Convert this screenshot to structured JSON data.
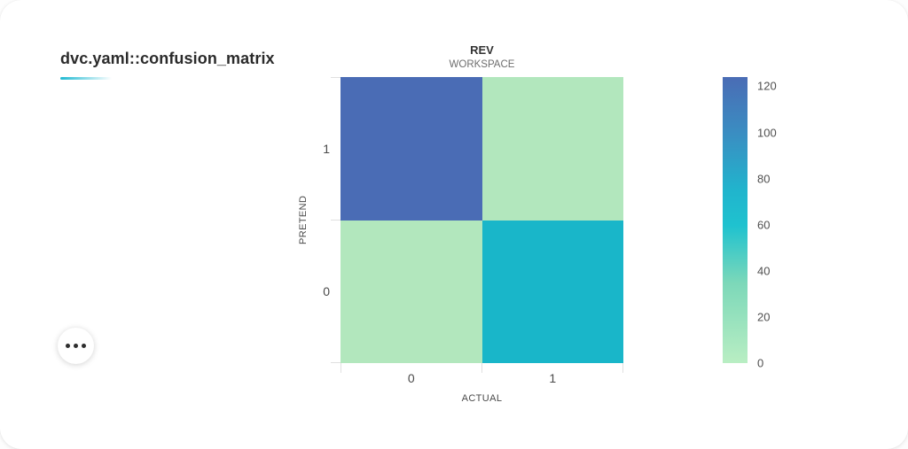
{
  "card": {
    "title": "dvc.yaml::confusion_matrix",
    "accent_color": "#1fb9d2"
  },
  "menu_button": {
    "icon": "ellipsis-icon"
  },
  "chart_data": {
    "type": "heatmap",
    "title": "REV",
    "subtitle": "WORKSPACE",
    "xlabel": "ACTUAL",
    "ylabel": "PRETEND",
    "x_categories": [
      "0",
      "1"
    ],
    "y_categories": [
      "1",
      "0"
    ],
    "rows": [
      {
        "pretend": "1",
        "cells": [
          {
            "actual": "0",
            "value": 124,
            "color": "#4a6cb5"
          },
          {
            "actual": "1",
            "value": 5,
            "color": "#b2e7bd"
          }
        ]
      },
      {
        "pretend": "0",
        "cells": [
          {
            "actual": "0",
            "value": 5,
            "color": "#b2e7bd"
          },
          {
            "actual": "1",
            "value": 64,
            "color": "#19b6c9"
          }
        ]
      }
    ],
    "legend": {
      "ticks": [
        0,
        20,
        40,
        60,
        80,
        100,
        120
      ],
      "domain": [
        0,
        124
      ],
      "gradient_bottom_to_top": [
        {
          "color": "#b9eec3",
          "at": "0%"
        },
        {
          "color": "#7cd8b9",
          "at": "28%"
        },
        {
          "color": "#1fc2cf",
          "at": "48%"
        },
        {
          "color": "#20b5cd",
          "at": "60%"
        },
        {
          "color": "#3a8ec2",
          "at": "80%"
        },
        {
          "color": "#4a6cb5",
          "at": "100%"
        }
      ]
    }
  }
}
